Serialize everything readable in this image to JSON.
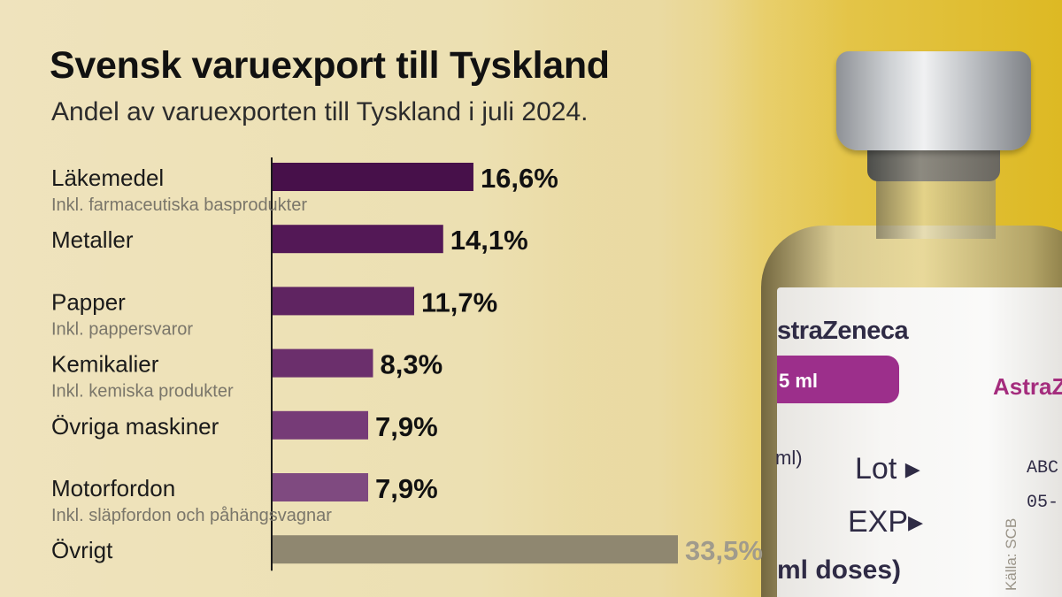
{
  "chart_data": {
    "type": "bar",
    "orientation": "horizontal",
    "title": "Svensk varuexport till Tyskland",
    "subtitle": "Andel av varuexporten till Tyskland i juli 2024.",
    "categories": [
      "Läkemedel",
      "Metaller",
      "Papper",
      "Kemikalier",
      "Övriga maskiner",
      "Motorfordon",
      "Övrigt"
    ],
    "notes": [
      "Inkl. farmaceutiska basprodukter",
      "",
      "Inkl. pappersvaror",
      "Inkl. kemiska produkter",
      "",
      "Inkl. släpfordon och påhängsvagnar",
      ""
    ],
    "values": [
      16.6,
      14.1,
      11.7,
      8.3,
      7.9,
      7.9,
      33.5
    ],
    "value_labels": [
      "16,6%",
      "14,1%",
      "11,7%",
      "8,3%",
      "7,9%",
      "7,9%",
      "33,5%"
    ],
    "unit": "%",
    "bar_colors": [
      "#47104a",
      "#531856",
      "#5f2461",
      "#6b2f6c",
      "#763b77",
      "#7f4a80",
      "#8f8770"
    ],
    "xlim": [
      0,
      33.5
    ],
    "grid": false,
    "legend": "none",
    "source": "Källa: SCB"
  },
  "photo": {
    "brand_top": "straZeneca",
    "pill_text": "5 ml",
    "brand_side": "AstraZ",
    "fragment": "ml)",
    "lot": "Lot ▸",
    "exp": "EXP▸",
    "code1": "ABC",
    "code2": "05-",
    "doses": "ml doses)"
  }
}
